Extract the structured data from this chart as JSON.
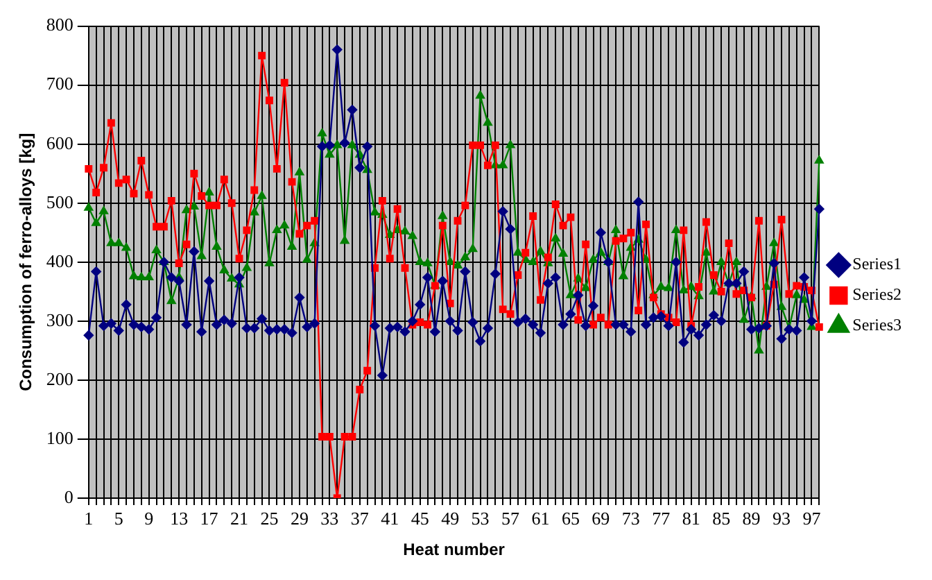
{
  "chart_data": {
    "type": "line",
    "xlabel": "Heat number",
    "ylabel": "Consumption of ferro-alloys [kg]",
    "categories": [
      "1",
      null,
      null,
      null,
      "5",
      null,
      null,
      null,
      "9",
      null,
      null,
      null,
      "13",
      null,
      null,
      null,
      "17",
      null,
      null,
      null,
      "21",
      null,
      null,
      null,
      "25",
      null,
      null,
      null,
      "29",
      null,
      null,
      null,
      "33",
      null,
      null,
      null,
      "37",
      null,
      null,
      null,
      "41",
      null,
      null,
      null,
      "45",
      null,
      null,
      null,
      "49",
      null,
      null,
      null,
      "53",
      null,
      null,
      null,
      "57",
      null,
      null,
      null,
      "61",
      null,
      null,
      null,
      "65",
      null,
      null,
      null,
      "69",
      null,
      null,
      null,
      "73",
      null,
      null,
      null,
      "77",
      null,
      null,
      null,
      "81",
      null,
      null,
      null,
      "85",
      null,
      null,
      null,
      "89",
      null,
      null,
      null,
      "93",
      null,
      null,
      null,
      "97",
      null
    ],
    "series": [
      {
        "name": "Series1",
        "color": "#000080",
        "marker": "diamond",
        "values": [
          276,
          384,
          292,
          296,
          284,
          328,
          294,
          290,
          286,
          306,
          400,
          374,
          368,
          294,
          418,
          282,
          368,
          294,
          302,
          296,
          374,
          288,
          288,
          304,
          284,
          286,
          286,
          280,
          340,
          290,
          296,
          596,
          598,
          760,
          602,
          658,
          560,
          596,
          292,
          208,
          288,
          290,
          282,
          300,
          328,
          374,
          282,
          368,
          300,
          284,
          384,
          298,
          266,
          288,
          380,
          486,
          456,
          298,
          304,
          294,
          280,
          364,
          374,
          294,
          312,
          344,
          292,
          326,
          450,
          400,
          294,
          294,
          282,
          502,
          294,
          306,
          308,
          292,
          400,
          264,
          286,
          276,
          294,
          310,
          300,
          364,
          364,
          384,
          286,
          288,
          292,
          398,
          270,
          286,
          284,
          374,
          300,
          490
        ]
      },
      {
        "name": "Series2",
        "color": "#ff0000",
        "marker": "square",
        "values": [
          558,
          518,
          560,
          636,
          534,
          540,
          516,
          572,
          514,
          460,
          460,
          504,
          398,
          430,
          550,
          512,
          496,
          496,
          540,
          500,
          406,
          454,
          522,
          750,
          674,
          558,
          704,
          536,
          448,
          462,
          470,
          104,
          104,
          0,
          104,
          104,
          184,
          216,
          390,
          504,
          406,
          490,
          390,
          294,
          298,
          294,
          360,
          462,
          330,
          470,
          496,
          598,
          598,
          564,
          598,
          320,
          312,
          378,
          416,
          478,
          336,
          408,
          498,
          462,
          476,
          302,
          430,
          294,
          306,
          294,
          436,
          440,
          450,
          318,
          464,
          340,
          312,
          306,
          298,
          454,
          292,
          358,
          468,
          378,
          350,
          432,
          346,
          352,
          340,
          470,
          292,
          362,
          472,
          346,
          360,
          358,
          352,
          290
        ]
      },
      {
        "name": "Series3",
        "color": "#008000",
        "marker": "triangle",
        "values": [
          492,
          466,
          486,
          432,
          432,
          424,
          376,
          374,
          374,
          420,
          400,
          334,
          374,
          488,
          494,
          410,
          518,
          426,
          386,
          372,
          362,
          390,
          484,
          512,
          398,
          454,
          462,
          426,
          552,
          404,
          432,
          618,
          582,
          598,
          436,
          598,
          582,
          556,
          484,
          480,
          446,
          454,
          452,
          444,
          400,
          398,
          360,
          478,
          400,
          394,
          408,
          422,
          682,
          636,
          564,
          564,
          598,
          416,
          404,
          400,
          418,
          398,
          440,
          414,
          344,
          372,
          356,
          404,
          416,
          400,
          454,
          376,
          424,
          438,
          404,
          344,
          358,
          356,
          454,
          352,
          358,
          342,
          416,
          350,
          400,
          364,
          400,
          302,
          342,
          250,
          358,
          432,
          324,
          288,
          344,
          336,
          290,
          572
        ]
      }
    ],
    "ylim": [
      0,
      800
    ],
    "yticks": [
      0,
      100,
      200,
      300,
      400,
      500,
      600,
      700,
      800
    ],
    "grid": true,
    "legend": "right",
    "line_style": "solid"
  }
}
